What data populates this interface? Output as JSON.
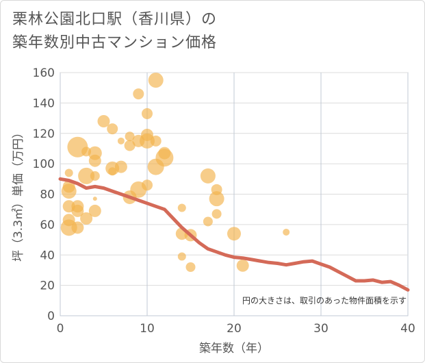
{
  "chart_data": {
    "type": "scatter",
    "title_line1": "栗林公園北口駅（香川県）の",
    "title_line2": "築年数別中古マンション価格",
    "xlabel": "築年数（年）",
    "ylabel": "坪（3.3㎡）単価（万円）",
    "xlim": [
      0,
      40
    ],
    "ylim": [
      0,
      160
    ],
    "xticks": [
      0,
      10,
      20,
      30,
      40
    ],
    "yticks": [
      0,
      20,
      40,
      60,
      80,
      100,
      120,
      140,
      160
    ],
    "note": "円の大きさは、取引のあった物件面積を示す",
    "colors": {
      "bubble": "#f2b24b",
      "line": "#d46a58",
      "grid": "#dcdcdc",
      "plot_border": "#c0c8d4"
    },
    "bubbles": [
      {
        "x": 1,
        "y": 58,
        "s": 12
      },
      {
        "x": 1,
        "y": 63,
        "s": 9
      },
      {
        "x": 1,
        "y": 72,
        "s": 9
      },
      {
        "x": 1,
        "y": 82,
        "s": 11
      },
      {
        "x": 1,
        "y": 85,
        "s": 9
      },
      {
        "x": 1,
        "y": 94,
        "s": 6
      },
      {
        "x": 2,
        "y": 111,
        "s": 15
      },
      {
        "x": 2,
        "y": 72,
        "s": 9
      },
      {
        "x": 2,
        "y": 69,
        "s": 9
      },
      {
        "x": 2,
        "y": 58,
        "s": 9
      },
      {
        "x": 3,
        "y": 64,
        "s": 9
      },
      {
        "x": 3,
        "y": 92,
        "s": 12
      },
      {
        "x": 3,
        "y": 108,
        "s": 7
      },
      {
        "x": 4,
        "y": 107,
        "s": 10
      },
      {
        "x": 4,
        "y": 102,
        "s": 9
      },
      {
        "x": 4,
        "y": 92,
        "s": 7
      },
      {
        "x": 4,
        "y": 69,
        "s": 9
      },
      {
        "x": 4,
        "y": 77,
        "s": 3
      },
      {
        "x": 5,
        "y": 128,
        "s": 9
      },
      {
        "x": 6,
        "y": 123,
        "s": 8
      },
      {
        "x": 6,
        "y": 97,
        "s": 10
      },
      {
        "x": 6,
        "y": 95,
        "s": 6
      },
      {
        "x": 7,
        "y": 98,
        "s": 9
      },
      {
        "x": 7,
        "y": 115,
        "s": 5
      },
      {
        "x": 8,
        "y": 112,
        "s": 8
      },
      {
        "x": 8,
        "y": 118,
        "s": 7
      },
      {
        "x": 8,
        "y": 78,
        "s": 10
      },
      {
        "x": 9,
        "y": 146,
        "s": 8
      },
      {
        "x": 9,
        "y": 115,
        "s": 9
      },
      {
        "x": 9,
        "y": 83,
        "s": 12
      },
      {
        "x": 10,
        "y": 133,
        "s": 8
      },
      {
        "x": 10,
        "y": 119,
        "s": 9
      },
      {
        "x": 10,
        "y": 115,
        "s": 11
      },
      {
        "x": 10,
        "y": 86,
        "s": 8
      },
      {
        "x": 11,
        "y": 155,
        "s": 11
      },
      {
        "x": 11,
        "y": 115,
        "s": 8
      },
      {
        "x": 11,
        "y": 98,
        "s": 12
      },
      {
        "x": 12,
        "y": 107,
        "s": 9
      },
      {
        "x": 12,
        "y": 104,
        "s": 13
      },
      {
        "x": 14,
        "y": 71,
        "s": 6
      },
      {
        "x": 14,
        "y": 54,
        "s": 9
      },
      {
        "x": 14,
        "y": 39,
        "s": 6
      },
      {
        "x": 15,
        "y": 53,
        "s": 9
      },
      {
        "x": 15,
        "y": 32,
        "s": 7
      },
      {
        "x": 17,
        "y": 92,
        "s": 11
      },
      {
        "x": 17,
        "y": 62,
        "s": 7
      },
      {
        "x": 18,
        "y": 83,
        "s": 8
      },
      {
        "x": 18,
        "y": 77,
        "s": 11
      },
      {
        "x": 18,
        "y": 67,
        "s": 7
      },
      {
        "x": 20,
        "y": 54,
        "s": 10
      },
      {
        "x": 21,
        "y": 33,
        "s": 9
      },
      {
        "x": 26,
        "y": 55,
        "s": 5
      }
    ],
    "trend_line": {
      "x": [
        0,
        1,
        2,
        3,
        4,
        5,
        6,
        7,
        8,
        9,
        10,
        11,
        12,
        13,
        14,
        15,
        16,
        17,
        18,
        19,
        20,
        21,
        22,
        23,
        24,
        25,
        26,
        27,
        28,
        29,
        30,
        31,
        32,
        33,
        34,
        35,
        36,
        37,
        38,
        39,
        40
      ],
      "y": [
        90,
        89,
        87,
        84,
        85,
        84,
        82,
        80,
        78,
        76,
        74,
        72,
        70,
        64,
        58,
        53,
        48,
        44,
        42,
        40,
        38.5,
        38,
        37,
        36,
        35,
        34.5,
        33.5,
        34.5,
        35.5,
        36,
        34,
        32,
        29,
        26,
        23,
        23,
        23.5,
        22,
        22.5,
        20,
        17
      ]
    }
  }
}
